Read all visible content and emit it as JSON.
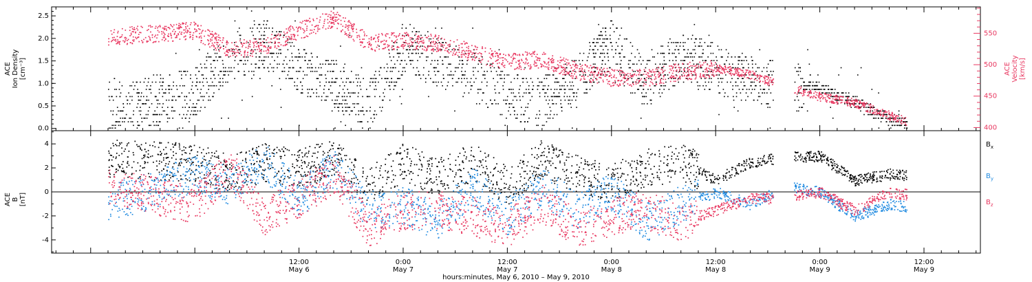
{
  "colors": {
    "density": "#000000",
    "velocity": "#e8365f",
    "bx": "#000000",
    "by": "#1f8ae0",
    "bz": "#e8365f",
    "axis": "#000000"
  },
  "chart_data": [
    {
      "type": "scatter",
      "panel": "top",
      "left_axis_label": [
        "ACE",
        "Ion Density",
        "[cm⁻³]"
      ],
      "right_axis_label": [
        "ACE",
        "Velocity",
        "[km/s]"
      ],
      "ylim_left": [
        -0.05,
        2.7
      ],
      "ylim_right": [
        395,
        592
      ],
      "left_ticks": [
        "0.0",
        "0.5",
        "1.0",
        "1.5",
        "2.0",
        "2.5"
      ],
      "left_tick_values": [
        0,
        0.5,
        1,
        1.5,
        2,
        2.5
      ],
      "right_ticks": [
        "400",
        "450",
        "500",
        "550"
      ],
      "right_tick_values": [
        400,
        450,
        500,
        550
      ],
      "x": [
        -10,
        0,
        4,
        8,
        12,
        16,
        20,
        24,
        28,
        32,
        36,
        40,
        44,
        48,
        52,
        56,
        60,
        64,
        68,
        72,
        76,
        80,
        82
      ],
      "series": [
        {
          "name": "Density",
          "axis": "left",
          "color": "#000000",
          "values": [
            0.45,
            0.8,
            1.6,
            1.9,
            1.3,
            1.0,
            0.5,
            1.8,
            1.5,
            1.2,
            0.7,
            0.6,
            1.1,
            1.9,
            1.0,
            1.6,
            1.3,
            1.1,
            1.0,
            0.9,
            0.6,
            0.2,
            0.15
          ]
        },
        {
          "name": "Velocity",
          "axis": "right",
          "color": "#e8365f",
          "values": [
            545,
            555,
            525,
            530,
            555,
            575,
            535,
            540,
            535,
            520,
            505,
            510,
            490,
            480,
            480,
            490,
            495,
            485,
            465,
            450,
            440,
            420,
            410
          ]
        }
      ]
    },
    {
      "type": "scatter",
      "panel": "bottom",
      "left_axis_label": [
        "ACE",
        "B",
        "[nT]"
      ],
      "ylim": [
        -5.1,
        5.1
      ],
      "ticks": [
        "-4",
        "-2",
        "0",
        "2",
        "4"
      ],
      "tick_values": [
        -4,
        -2,
        0,
        2,
        4
      ],
      "x": [
        -10,
        0,
        4,
        8,
        12,
        16,
        20,
        24,
        28,
        32,
        36,
        40,
        44,
        48,
        52,
        56,
        60,
        64,
        68,
        72,
        76,
        80,
        82
      ],
      "series": [
        {
          "name": "Bx",
          "label_main": "B",
          "label_sub": "x",
          "color": "#000000",
          "values": [
            2.8,
            2.5,
            1.5,
            2.5,
            2.0,
            2.8,
            0.5,
            2.5,
            1.2,
            2.5,
            0.5,
            2.8,
            1.5,
            0.8,
            2.0,
            2.5,
            1.0,
            2.5,
            2.9,
            3.0,
            1.0,
            1.5,
            1.4
          ]
        },
        {
          "name": "By",
          "label_main": "B",
          "label_sub": "y",
          "color": "#1f8ae0",
          "values": [
            -1.0,
            1.5,
            0.5,
            2.5,
            -0.5,
            2.0,
            -1.5,
            -1.0,
            -2.5,
            0.5,
            -2.0,
            0.5,
            -1.5,
            0.0,
            -2.5,
            -1.0,
            0.0,
            -1.0,
            0.5,
            0.0,
            -2.0,
            -1.0,
            -1.2
          ]
        },
        {
          "name": "Bz",
          "label_main": "B",
          "label_sub": "z",
          "color": "#e8365f",
          "values": [
            0.5,
            -1.0,
            2.0,
            -2.0,
            -0.5,
            1.5,
            -3.0,
            -1.5,
            -1.5,
            -2.0,
            -3.0,
            -1.0,
            -3.0,
            -2.0,
            -1.5,
            -2.5,
            -1.5,
            -0.5,
            -0.5,
            0.0,
            -1.5,
            0.0,
            -0.2
          ]
        }
      ]
    }
  ],
  "x_axis": {
    "xlim": [
      -16.5,
      90.5
    ],
    "major_ticks": [
      {
        "value": 12,
        "time": "12:00",
        "date": "May 6"
      },
      {
        "value": 24,
        "time": "0:00",
        "date": "May 7"
      },
      {
        "value": 36,
        "time": "12:00",
        "date": "May 7"
      },
      {
        "value": 48,
        "time": "0:00",
        "date": "May 8"
      },
      {
        "value": 60,
        "time": "12:00",
        "date": "May 8"
      },
      {
        "value": 72,
        "time": "0:00",
        "date": "May 9"
      },
      {
        "value": 84,
        "time": "12:00",
        "date": "May 9"
      }
    ],
    "title": "hours:minutes, May  6, 2010 – May  9, 2010"
  }
}
